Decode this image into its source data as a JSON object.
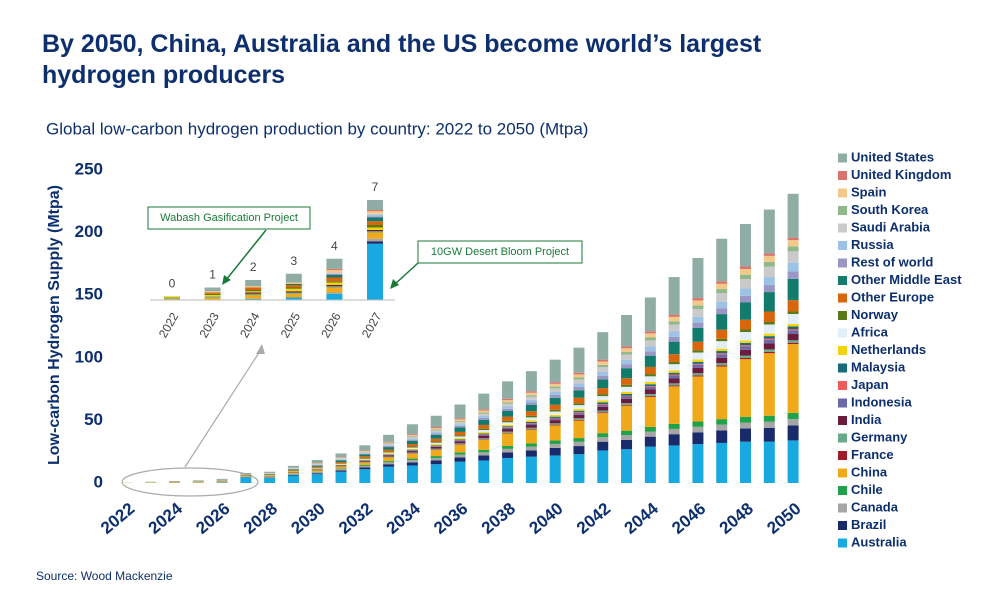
{
  "chart_data": {
    "type": "stacked-bar",
    "title": "By 2050, China, Australia and the US become world’s largest hydrogen producers",
    "subtitle": "Global low-carbon hydrogen production by country: 2022 to 2050 (Mtpa)",
    "y_label": "Low-carbon Hydrogen Supply (Mtpa)",
    "source": "Source: Wood Mackenzie",
    "ylim": [
      0,
      250
    ],
    "yticks": [
      0,
      50,
      100,
      150,
      200,
      250
    ],
    "categories": [
      "2022",
      null,
      "2024",
      null,
      "2026",
      null,
      "2028",
      null,
      "2030",
      null,
      "2032",
      null,
      "2034",
      null,
      "2036",
      null,
      "2038",
      null,
      "2040",
      null,
      "2042",
      null,
      "2044",
      null,
      "2046",
      null,
      "2048",
      null,
      "2050"
    ],
    "series": [
      {
        "name": "Australia",
        "color": "#19a9e1",
        "values": [
          0,
          0,
          0.1,
          0.2,
          0.5,
          4.5,
          4,
          6,
          7,
          9,
          11,
          13,
          14,
          15,
          17,
          18,
          20,
          21,
          22,
          23,
          26,
          27,
          29,
          30,
          31,
          32,
          33,
          33,
          34
        ]
      },
      {
        "name": "Brazil",
        "color": "#1a2b6b",
        "values": [
          0,
          0,
          0,
          0,
          0,
          0.2,
          0.3,
          0.5,
          0.8,
          1,
          1.5,
          2,
          2.5,
          3,
          3.5,
          4,
          4.5,
          5,
          6,
          6.5,
          7,
          7.5,
          8,
          9,
          9.5,
          10,
          10.5,
          11,
          12
        ]
      },
      {
        "name": "Canada",
        "color": "#a6a6a6",
        "values": [
          0,
          0,
          0,
          0,
          0.1,
          0.2,
          0.3,
          0.5,
          0.8,
          1,
          1.2,
          1.5,
          1.8,
          2,
          2.2,
          2.5,
          2.8,
          3,
          3.2,
          3.4,
          3.6,
          3.8,
          4,
          4.2,
          4.4,
          4.6,
          4.8,
          4.9,
          5
        ]
      },
      {
        "name": "Chile",
        "color": "#1fa24a",
        "values": [
          0,
          0,
          0,
          0,
          0,
          0,
          0.1,
          0.2,
          0.3,
          0.5,
          0.7,
          1,
          1.2,
          1.5,
          1.8,
          2,
          2.3,
          2.6,
          2.8,
          3,
          3.2,
          3.5,
          3.8,
          4,
          4.2,
          4.4,
          4.6,
          4.8,
          5
        ]
      },
      {
        "name": "China",
        "color": "#f0a91b",
        "values": [
          0.1,
          0.2,
          0.3,
          0.3,
          0.4,
          0.5,
          0.6,
          0.8,
          1,
          1.5,
          2,
          3,
          4,
          5,
          6,
          8,
          10,
          11,
          12,
          14,
          16,
          20,
          24,
          30,
          36,
          42,
          46,
          50,
          55
        ]
      },
      {
        "name": "France",
        "color": "#a11c2b",
        "values": [
          0,
          0,
          0,
          0,
          0,
          0,
          0,
          0.1,
          0.1,
          0.1,
          0.2,
          0.2,
          0.3,
          0.3,
          0.4,
          0.4,
          0.5,
          0.5,
          0.6,
          0.6,
          0.7,
          0.7,
          0.8,
          0.8,
          0.9,
          0.9,
          1,
          1,
          1
        ]
      },
      {
        "name": "Germany",
        "color": "#6aa88a",
        "values": [
          0.1,
          0.1,
          0.1,
          0.1,
          0.1,
          0.1,
          0.1,
          0.2,
          0.3,
          0.3,
          0.4,
          0.5,
          0.6,
          0.7,
          0.8,
          0.9,
          1,
          1,
          1.1,
          1.2,
          1.3,
          1.4,
          1.5,
          1.6,
          1.7,
          1.8,
          1.9,
          2,
          2
        ]
      },
      {
        "name": "India",
        "color": "#6b1c3c",
        "values": [
          0,
          0,
          0.1,
          0.1,
          0.1,
          0.1,
          0.2,
          0.3,
          0.4,
          0.5,
          0.7,
          0.9,
          1.1,
          1.3,
          1.5,
          1.8,
          2,
          2.2,
          2.5,
          2.8,
          3,
          3.3,
          3.6,
          3.9,
          4.2,
          4.4,
          4.6,
          4.8,
          5
        ]
      },
      {
        "name": "Indonesia",
        "color": "#6b6aa8",
        "values": [
          0,
          0,
          0,
          0,
          0,
          0,
          0.1,
          0.1,
          0.2,
          0.2,
          0.3,
          0.4,
          0.5,
          0.6,
          0.7,
          0.8,
          1,
          1.1,
          1.3,
          1.5,
          1.7,
          1.9,
          2.1,
          2.3,
          2.5,
          2.7,
          2.8,
          2.9,
          3
        ]
      },
      {
        "name": "Japan",
        "color": "#ef5a5a",
        "values": [
          0,
          0,
          0,
          0,
          0,
          0,
          0,
          0,
          0.1,
          0.1,
          0.1,
          0.2,
          0.2,
          0.3,
          0.3,
          0.4,
          0.4,
          0.5,
          0.5,
          0.6,
          0.6,
          0.7,
          0.7,
          0.8,
          0.8,
          0.9,
          0.9,
          1,
          1
        ]
      },
      {
        "name": "Malaysia",
        "color": "#1a6b7b",
        "values": [
          0,
          0,
          0,
          0,
          0,
          0,
          0.1,
          0.1,
          0.1,
          0.2,
          0.2,
          0.3,
          0.4,
          0.5,
          0.6,
          0.7,
          0.8,
          0.9,
          1,
          1.1,
          1.2,
          1.3,
          1.4,
          1.5,
          1.6,
          1.7,
          1.8,
          1.9,
          2
        ]
      },
      {
        "name": "Netherlands",
        "color": "#f2d40c",
        "values": [
          0.1,
          0.1,
          0.1,
          0.2,
          0.2,
          0.2,
          0.2,
          0.3,
          0.4,
          0.5,
          0.6,
          0.7,
          0.8,
          0.9,
          1,
          1.1,
          1.2,
          1.3,
          1.4,
          1.5,
          1.6,
          1.7,
          1.8,
          1.8,
          1.9,
          1.9,
          2,
          2,
          2
        ]
      },
      {
        "name": "Africa",
        "color": "#e2eef8",
        "values": [
          0,
          0,
          0,
          0,
          0,
          0,
          0.1,
          0.2,
          0.3,
          0.4,
          0.5,
          0.7,
          0.9,
          1.1,
          1.4,
          1.7,
          2,
          2.3,
          2.7,
          3,
          3.5,
          4,
          4.5,
          5,
          5.5,
          6,
          6.7,
          7.3,
          8
        ]
      },
      {
        "name": "Norway",
        "color": "#5a7a1a",
        "values": [
          0,
          0.1,
          0.1,
          0.1,
          0.1,
          0.2,
          0.2,
          0.3,
          0.4,
          0.5,
          0.6,
          0.7,
          0.8,
          0.9,
          1,
          1.1,
          1.2,
          1.3,
          1.4,
          1.5,
          1.6,
          1.7,
          1.8,
          1.8,
          1.9,
          1.9,
          2,
          2,
          2
        ]
      },
      {
        "name": "Other Europe",
        "color": "#d9650c",
        "values": [
          0,
          0.1,
          0.2,
          0.2,
          0.3,
          0.3,
          0.4,
          0.6,
          0.8,
          1,
          1.3,
          1.6,
          2,
          2.3,
          2.6,
          3,
          3.3,
          3.6,
          4,
          4.4,
          4.8,
          5.2,
          5.7,
          6.2,
          6.7,
          7.2,
          7.8,
          8.4,
          9
        ]
      },
      {
        "name": "Other Middle East",
        "color": "#127b6b",
        "values": [
          0,
          0,
          0,
          0.1,
          0.2,
          0.3,
          0.4,
          0.6,
          0.9,
          1.2,
          1.5,
          2,
          2.5,
          3,
          3.5,
          4,
          4.5,
          5,
          5.5,
          6,
          7,
          8,
          9,
          10,
          11,
          12.5,
          14,
          15.5,
          17
        ]
      },
      {
        "name": "Rest of world",
        "color": "#9b97c4",
        "values": [
          0,
          0,
          0,
          0,
          0.1,
          0.1,
          0.2,
          0.3,
          0.4,
          0.5,
          0.6,
          0.8,
          1,
          1.2,
          1.4,
          1.6,
          1.8,
          2,
          2.3,
          2.6,
          2.9,
          3.2,
          3.5,
          3.9,
          4.3,
          4.7,
          5.1,
          5.6,
          6
        ]
      },
      {
        "name": "Russia",
        "color": "#9cc3e6",
        "values": [
          0,
          0,
          0,
          0,
          0,
          0.1,
          0.1,
          0.2,
          0.3,
          0.4,
          0.5,
          0.7,
          0.9,
          1.1,
          1.3,
          1.5,
          1.8,
          2.1,
          2.4,
          2.7,
          3,
          3.4,
          3.8,
          4.2,
          4.7,
          5.2,
          5.8,
          6.4,
          7
        ]
      },
      {
        "name": "Saudi Arabia",
        "color": "#cacaca",
        "values": [
          0,
          0,
          0,
          0,
          0.1,
          0.1,
          0.2,
          0.3,
          0.4,
          0.5,
          0.7,
          0.9,
          1.1,
          1.3,
          1.6,
          1.9,
          2.2,
          2.5,
          2.9,
          3.3,
          3.8,
          4.3,
          4.9,
          5.5,
          6.2,
          6.9,
          7.6,
          8.3,
          9
        ]
      },
      {
        "name": "South Korea",
        "color": "#8fb98b",
        "values": [
          0,
          0,
          0,
          0,
          0,
          0,
          0.1,
          0.1,
          0.2,
          0.3,
          0.4,
          0.5,
          0.6,
          0.7,
          0.8,
          0.9,
          1,
          1.2,
          1.4,
          1.6,
          1.8,
          2,
          2.3,
          2.6,
          2.9,
          3.2,
          3.5,
          3.8,
          4
        ]
      },
      {
        "name": "Spain",
        "color": "#f3c98b",
        "values": [
          0,
          0.1,
          0.1,
          0.1,
          0.2,
          0.2,
          0.2,
          0.3,
          0.4,
          0.5,
          0.6,
          0.8,
          1,
          1.2,
          1.4,
          1.6,
          1.8,
          2,
          2.2,
          2.4,
          2.7,
          3,
          3.3,
          3.6,
          3.9,
          4.2,
          4.5,
          4.8,
          5
        ]
      },
      {
        "name": "United Kingdom",
        "color": "#d9736b",
        "values": [
          0,
          0,
          0,
          0,
          0.1,
          0.1,
          0.1,
          0.2,
          0.3,
          0.4,
          0.5,
          0.6,
          0.7,
          0.8,
          0.9,
          1,
          1.1,
          1.2,
          1.3,
          1.4,
          1.5,
          1.6,
          1.7,
          1.8,
          1.9,
          2,
          2,
          2,
          2
        ]
      },
      {
        "name": "United States",
        "color": "#8fada5",
        "values": [
          0,
          0.3,
          0.5,
          0.7,
          0.8,
          0.8,
          1,
          1.5,
          2.5,
          3,
          4,
          5.5,
          8,
          9,
          11,
          12.5,
          14,
          16,
          18,
          20,
          22,
          25,
          27,
          30,
          32,
          34,
          34,
          35,
          35
        ]
      }
    ],
    "inset": {
      "categories": [
        "2022",
        "2023",
        "2024",
        "2025",
        "2026",
        "2027"
      ],
      "totals": [
        0,
        1,
        2,
        3,
        4,
        7
      ],
      "annotations": [
        "Wabash Gasification Project",
        "10GW Desert Bloom Project"
      ]
    }
  }
}
